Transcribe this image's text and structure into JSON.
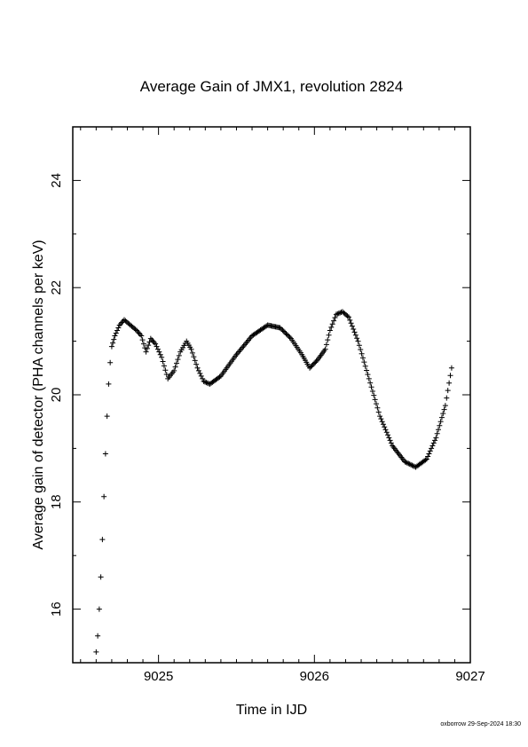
{
  "chart_data": {
    "type": "scatter",
    "title": "Average Gain of JMX1, revolution 2824",
    "xlabel": "Time in IJD",
    "ylabel": "Average gain of detector (PHA channels per keV)",
    "xlim": [
      9024.45,
      9027.0
    ],
    "ylim": [
      15.0,
      25.0
    ],
    "x_ticks": [
      9025,
      9026,
      9027
    ],
    "y_ticks": [
      16,
      18,
      20,
      22,
      24
    ],
    "marker": "plus",
    "grid": false,
    "series": [
      {
        "points": [
          [
            9024.6,
            15.2
          ],
          [
            9024.61,
            15.5
          ],
          [
            9024.62,
            16.0
          ],
          [
            9024.63,
            16.6
          ],
          [
            9024.64,
            17.3
          ],
          [
            9024.65,
            18.1
          ],
          [
            9024.66,
            18.9
          ],
          [
            9024.67,
            19.6
          ],
          [
            9024.68,
            20.2
          ],
          [
            9024.69,
            20.6
          ],
          [
            9024.7,
            20.9
          ],
          [
            9024.72,
            21.1
          ],
          [
            9024.75,
            21.3
          ],
          [
            9024.78,
            21.4
          ],
          [
            9024.82,
            21.3
          ],
          [
            9024.86,
            21.2
          ],
          [
            9024.89,
            21.1
          ],
          [
            9024.92,
            20.8
          ],
          [
            9024.95,
            21.05
          ],
          [
            9024.98,
            20.95
          ],
          [
            9025.02,
            20.7
          ],
          [
            9025.06,
            20.3
          ],
          [
            9025.1,
            20.45
          ],
          [
            9025.14,
            20.8
          ],
          [
            9025.18,
            21.0
          ],
          [
            9025.21,
            20.85
          ],
          [
            9025.25,
            20.5
          ],
          [
            9025.29,
            20.25
          ],
          [
            9025.33,
            20.2
          ],
          [
            9025.4,
            20.35
          ],
          [
            9025.5,
            20.75
          ],
          [
            9025.6,
            21.1
          ],
          [
            9025.7,
            21.3
          ],
          [
            9025.78,
            21.25
          ],
          [
            9025.85,
            21.05
          ],
          [
            9025.92,
            20.75
          ],
          [
            9025.97,
            20.5
          ],
          [
            9026.02,
            20.65
          ],
          [
            9026.07,
            20.85
          ],
          [
            9026.1,
            21.2
          ],
          [
            9026.14,
            21.5
          ],
          [
            9026.18,
            21.55
          ],
          [
            9026.22,
            21.45
          ],
          [
            9026.28,
            21.0
          ],
          [
            9026.35,
            20.3
          ],
          [
            9026.42,
            19.6
          ],
          [
            9026.5,
            19.05
          ],
          [
            9026.58,
            18.75
          ],
          [
            9026.65,
            18.65
          ],
          [
            9026.72,
            18.8
          ],
          [
            9026.78,
            19.2
          ],
          [
            9026.84,
            19.8
          ],
          [
            9026.88,
            20.5
          ]
        ]
      }
    ],
    "footer": "oxborrow 29-Sep-2024 18:30"
  }
}
